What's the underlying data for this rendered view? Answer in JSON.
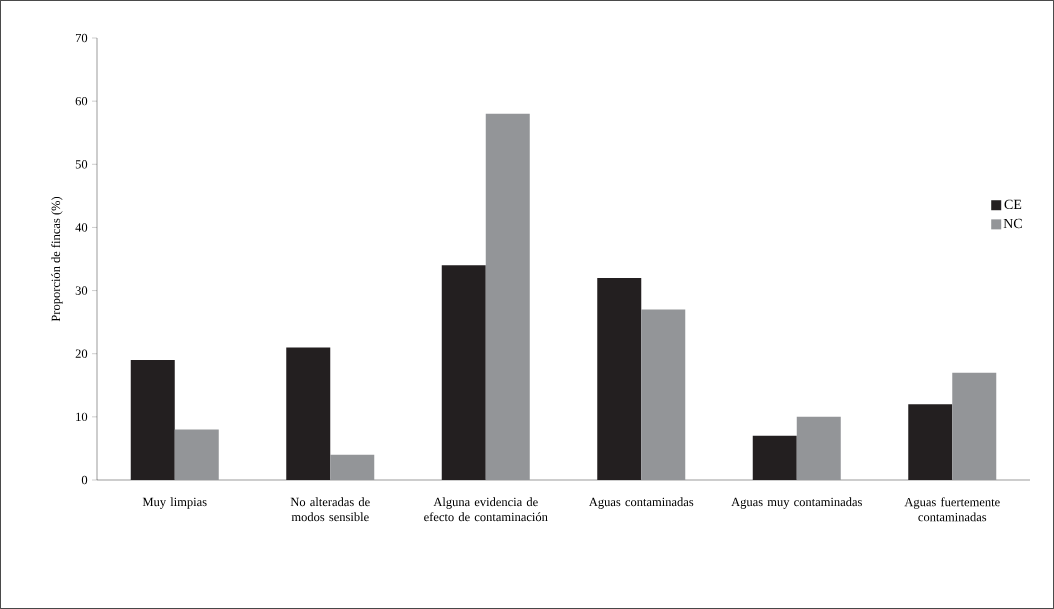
{
  "chart_data": {
    "type": "bar",
    "ylabel": "Proporción de fincas (%)",
    "categories": [
      "Muy limpias",
      "No alteradas de modos sensible",
      "Alguna evidencia de efecto de contaminación",
      "Aguas contaminadas",
      "Aguas muy contaminadas",
      "Aguas fuertemente contaminadas"
    ],
    "series": [
      {
        "name": "CE",
        "color": "#231f20",
        "values": [
          19,
          21,
          34,
          32,
          7,
          12
        ]
      },
      {
        "name": "NC",
        "color": "#939598",
        "values": [
          8,
          4,
          58,
          27,
          10,
          17
        ]
      }
    ],
    "ylim": [
      0,
      70
    ],
    "yticks": [
      0,
      10,
      20,
      30,
      40,
      50,
      60,
      70
    ],
    "legend": "right"
  }
}
